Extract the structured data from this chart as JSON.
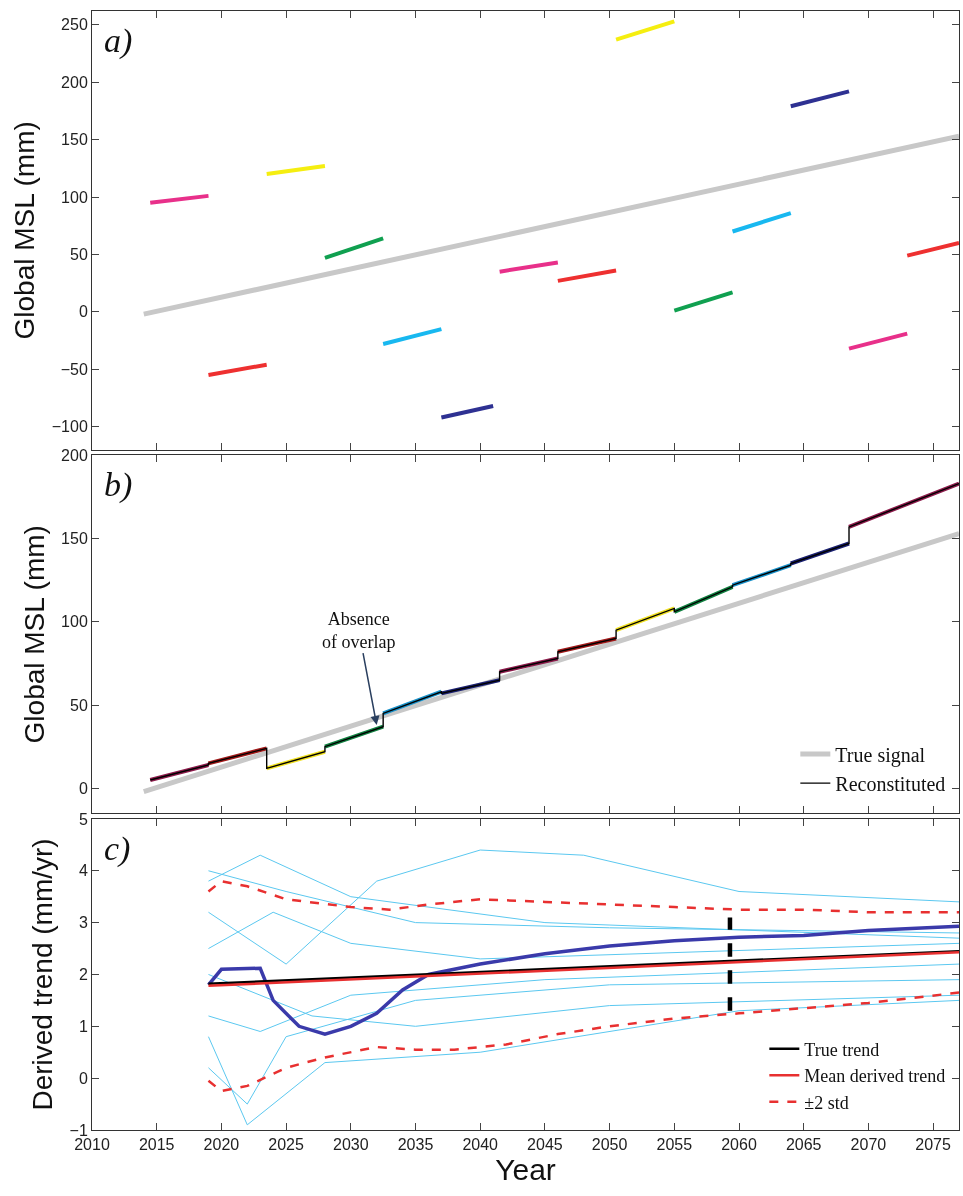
{
  "chart_data": [
    {
      "type": "line",
      "annotations": [
        "a)"
      ],
      "ylabel": "Global MSL (mm)",
      "xlim": [
        2010,
        2077
      ],
      "xticks": [
        2010,
        2015,
        2020,
        2025,
        2030,
        2035,
        2040,
        2045,
        2050,
        2055,
        2060,
        2065,
        2070,
        2075
      ],
      "ylim": [
        -120,
        262
      ],
      "yticks": [
        -100,
        -50,
        0,
        50,
        100,
        150,
        200,
        250
      ],
      "tick_labels": "y",
      "legend": false,
      "series": [
        {
          "color": "#c8c8c8",
          "x": [
            2014,
            2077
          ],
          "values": [
            -2,
            153
          ]
        },
        {
          "color": "#e8308a",
          "x": [
            2014.5,
            2019
          ],
          "values": [
            95,
            101
          ]
        },
        {
          "color": "#ee3030",
          "x": [
            2019,
            2023.5
          ],
          "values": [
            -55,
            -46
          ]
        },
        {
          "color": "#f5ee10",
          "x": [
            2023.5,
            2028
          ],
          "values": [
            120,
            127
          ]
        },
        {
          "color": "#10a050",
          "x": [
            2028,
            2032.5
          ],
          "values": [
            47,
            64
          ]
        },
        {
          "color": "#18b8f0",
          "x": [
            2032.5,
            2037
          ],
          "values": [
            -28,
            -15
          ]
        },
        {
          "color": "#2e3192",
          "x": [
            2037,
            2041
          ],
          "values": [
            -92,
            -82
          ]
        },
        {
          "color": "#e8308a",
          "x": [
            2041.5,
            2046
          ],
          "values": [
            35,
            43
          ]
        },
        {
          "color": "#ee3030",
          "x": [
            2046,
            2050.5
          ],
          "values": [
            27,
            36
          ]
        },
        {
          "color": "#f5ee10",
          "x": [
            2050.5,
            2055
          ],
          "values": [
            237,
            253
          ]
        },
        {
          "color": "#10a050",
          "x": [
            2055,
            2059.5
          ],
          "values": [
            1,
            17
          ]
        },
        {
          "color": "#18b8f0",
          "x": [
            2059.5,
            2064
          ],
          "values": [
            70,
            86
          ]
        },
        {
          "color": "#2e3192",
          "x": [
            2064,
            2068.5
          ],
          "values": [
            179,
            192
          ]
        },
        {
          "color": "#e8308a",
          "x": [
            2068.5,
            2073
          ],
          "values": [
            -32,
            -19
          ]
        },
        {
          "color": "#ee3030",
          "x": [
            2073,
            2077
          ],
          "values": [
            49,
            60
          ]
        }
      ]
    },
    {
      "type": "line",
      "annotations": [
        "b)",
        {
          "text": "Absence\nof overlap",
          "x": 2032,
          "y": 38
        }
      ],
      "ylabel": "Global MSL (mm)",
      "xlim": [
        2010,
        2077
      ],
      "xticks": [
        2010,
        2015,
        2020,
        2025,
        2030,
        2035,
        2040,
        2045,
        2050,
        2055,
        2060,
        2065,
        2070,
        2075
      ],
      "ylim": [
        -15,
        200
      ],
      "yticks": [
        0,
        50,
        100,
        150,
        200
      ],
      "tick_labels": "y",
      "legend": "bottom right",
      "series": [
        {
          "name": "True signal",
          "color": "#c8c8c8",
          "x": [
            2014,
            2077
          ],
          "values": [
            -2,
            153
          ]
        },
        {
          "color": "#8b1a4a",
          "x": [
            2014.5,
            2019
          ],
          "values": [
            5,
            14
          ]
        },
        {
          "color": "#a01818",
          "x": [
            2019,
            2023.5
          ],
          "values": [
            15,
            24
          ]
        },
        {
          "color": "#f0e020",
          "x": [
            2023.5,
            2028
          ],
          "values": [
            12,
            22
          ]
        },
        {
          "color": "#108040",
          "x": [
            2028,
            2032.5
          ],
          "values": [
            25,
            37
          ]
        },
        {
          "color": "#1890c8",
          "x": [
            2032.5,
            2037
          ],
          "values": [
            45,
            58
          ]
        },
        {
          "color": "#1a2070",
          "x": [
            2037,
            2041.5
          ],
          "values": [
            57,
            65
          ]
        },
        {
          "color": "#8b1a4a",
          "x": [
            2041.5,
            2046
          ],
          "values": [
            70,
            78
          ]
        },
        {
          "color": "#a01818",
          "x": [
            2046,
            2050.5
          ],
          "values": [
            82,
            90
          ]
        },
        {
          "color": "#f0e020",
          "x": [
            2050.5,
            2055
          ],
          "values": [
            95,
            108
          ]
        },
        {
          "color": "#108040",
          "x": [
            2055,
            2059.5
          ],
          "values": [
            106,
            121
          ]
        },
        {
          "color": "#1890c8",
          "x": [
            2059.5,
            2064
          ],
          "values": [
            122,
            134
          ]
        },
        {
          "color": "#1a2070",
          "x": [
            2064,
            2068.5
          ],
          "values": [
            135,
            147
          ]
        },
        {
          "color": "#8b1a4a",
          "x": [
            2068.5,
            2077
          ],
          "values": [
            157,
            183
          ]
        },
        {
          "name": "Reconstituted",
          "color": "#000000",
          "x": [
            2014.5,
            2019,
            2019,
            2023.5,
            2023.5,
            2028,
            2028,
            2032.5,
            2032.5,
            2037,
            2037,
            2041.5,
            2041.5,
            2046,
            2046,
            2050.5,
            2050.5,
            2055,
            2055,
            2059.5,
            2059.5,
            2064,
            2064,
            2068.5,
            2068.5,
            2077
          ],
          "values": [
            5,
            14,
            15,
            24,
            12,
            22,
            25,
            37,
            45,
            58,
            57,
            65,
            70,
            78,
            82,
            90,
            95,
            108,
            106,
            121,
            122,
            134,
            135,
            147,
            157,
            183
          ]
        }
      ]
    },
    {
      "type": "line",
      "annotations": [
        "c)"
      ],
      "ylabel": "Derived trend (mm/yr)",
      "xlabel": "Year",
      "xlim": [
        2010,
        2077
      ],
      "xticks": [
        2010,
        2015,
        2020,
        2025,
        2030,
        2035,
        2040,
        2045,
        2050,
        2055,
        2060,
        2065,
        2070,
        2075
      ],
      "ylim": [
        -1,
        5
      ],
      "yticks": [
        -1,
        0,
        1,
        2,
        3,
        4,
        5
      ],
      "legend": "bottom right",
      "series": [
        {
          "color": "#5bc8f0",
          "x": [
            2019,
            2025,
            2035,
            2050,
            2077
          ],
          "values": [
            4.0,
            3.6,
            3.0,
            2.9,
            2.8
          ]
        },
        {
          "color": "#5bc8f0",
          "x": [
            2019,
            2022,
            2025,
            2035,
            2050,
            2077
          ],
          "values": [
            0.2,
            -0.5,
            0.8,
            1.5,
            1.8,
            1.9
          ]
        },
        {
          "color": "#5bc8f0",
          "x": [
            2019,
            2024,
            2030,
            2040,
            2077
          ],
          "values": [
            2.5,
            3.2,
            2.6,
            2.3,
            2.6
          ]
        },
        {
          "color": "#5bc8f0",
          "x": [
            2019,
            2023,
            2030,
            2045,
            2077
          ],
          "values": [
            1.2,
            0.9,
            1.6,
            1.9,
            2.2
          ]
        },
        {
          "color": "#5bc8f0",
          "x": [
            2019,
            2025,
            2032,
            2040,
            2048,
            2060,
            2077
          ],
          "values": [
            3.2,
            2.2,
            3.8,
            4.4,
            4.3,
            3.6,
            3.4
          ]
        },
        {
          "color": "#5bc8f0",
          "x": [
            2019,
            2022,
            2028,
            2040,
            2060,
            2077
          ],
          "values": [
            0.8,
            -0.9,
            0.3,
            0.5,
            1.3,
            1.5
          ]
        },
        {
          "color": "#5bc8f0",
          "x": [
            2019,
            2027,
            2035,
            2050,
            2077
          ],
          "values": [
            2.0,
            1.2,
            1.0,
            1.4,
            1.6
          ]
        },
        {
          "color": "#5bc8f0",
          "x": [
            2019,
            2023,
            2030,
            2045,
            2077
          ],
          "values": [
            3.8,
            4.3,
            3.5,
            3.0,
            2.7
          ]
        },
        {
          "color": "#3a3aaa",
          "x": [
            2019,
            2020,
            2023,
            2024,
            2026,
            2028,
            2030,
            2032,
            2034,
            2036,
            2040,
            2045,
            2050,
            2055,
            2060,
            2065,
            2070,
            2077
          ],
          "values": [
            1.8,
            2.1,
            2.12,
            1.5,
            1.0,
            0.85,
            1.0,
            1.25,
            1.7,
            2.0,
            2.2,
            2.4,
            2.55,
            2.65,
            2.72,
            2.75,
            2.85,
            2.93
          ]
        },
        {
          "color": "#000000",
          "line_style": "dashed",
          "x": [
            2059.3,
            2059.3
          ],
          "values": [
            1.3,
            3.1
          ]
        },
        {
          "name": "True trend",
          "color": "#000000",
          "x": [
            2019,
            2077
          ],
          "values": [
            1.82,
            2.45
          ]
        },
        {
          "name": "Mean derived trend",
          "color": "#e83030",
          "x": [
            2019,
            2077
          ],
          "values": [
            1.78,
            2.43
          ]
        },
        {
          "name": "±2 std",
          "color": "#e83030",
          "line_style": "dashed",
          "x": [
            2019,
            2020,
            2022,
            2025,
            2030,
            2033,
            2036,
            2040,
            2045,
            2050,
            2055,
            2060,
            2065,
            2070,
            2077
          ],
          "values": [
            3.6,
            3.8,
            3.7,
            3.45,
            3.3,
            3.25,
            3.35,
            3.45,
            3.4,
            3.35,
            3.3,
            3.25,
            3.25,
            3.2,
            3.2
          ]
        },
        {
          "color": "#e83030",
          "line_style": "dashed",
          "x": [
            2019,
            2020,
            2022,
            2025,
            2028,
            2032,
            2035,
            2038,
            2042,
            2046,
            2050,
            2055,
            2060,
            2065,
            2070,
            2077
          ],
          "values": [
            -0.05,
            -0.25,
            -0.15,
            0.2,
            0.4,
            0.6,
            0.55,
            0.55,
            0.65,
            0.85,
            1.0,
            1.15,
            1.25,
            1.35,
            1.45,
            1.65
          ]
        }
      ]
    }
  ]
}
